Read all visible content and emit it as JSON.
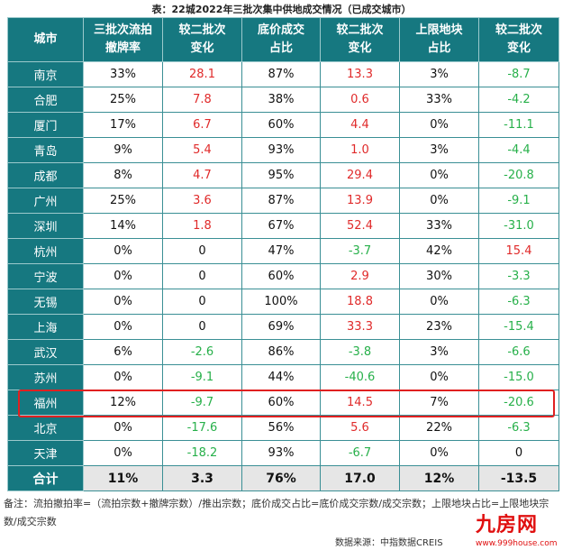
{
  "title": "表：22城2022年三批次集中供地成交情况（已成交城市）",
  "headers": [
    "城市",
    "三批次流拍\n撤牌率",
    "较二批次\n变化",
    "底价成交\n占比",
    "较二批次\n变化",
    "上限地块\n占比",
    "较二批次\n变化"
  ],
  "rows": [
    [
      "南京",
      "33%",
      "28.1",
      "87%",
      "13.3",
      "3%",
      "-8.7"
    ],
    [
      "合肥",
      "25%",
      "7.8",
      "38%",
      "0.6",
      "33%",
      "-4.2"
    ],
    [
      "厦门",
      "17%",
      "6.7",
      "60%",
      "4.4",
      "0%",
      "-11.1"
    ],
    [
      "青岛",
      "9%",
      "5.4",
      "93%",
      "1.0",
      "3%",
      "-4.4"
    ],
    [
      "成都",
      "8%",
      "4.7",
      "95%",
      "29.4",
      "0%",
      "-20.8"
    ],
    [
      "广州",
      "25%",
      "3.6",
      "87%",
      "13.9",
      "0%",
      "-9.1"
    ],
    [
      "深圳",
      "14%",
      "1.8",
      "67%",
      "52.4",
      "33%",
      "-31.0"
    ],
    [
      "杭州",
      "0%",
      "0",
      "47%",
      "-3.7",
      "42%",
      "15.4"
    ],
    [
      "宁波",
      "0%",
      "0",
      "60%",
      "2.9",
      "30%",
      "-3.3"
    ],
    [
      "无锡",
      "0%",
      "0",
      "100%",
      "18.8",
      "0%",
      "-6.3"
    ],
    [
      "上海",
      "0%",
      "0",
      "69%",
      "33.3",
      "23%",
      "-15.4"
    ],
    [
      "武汉",
      "6%",
      "-2.6",
      "86%",
      "-3.8",
      "3%",
      "-6.6"
    ],
    [
      "苏州",
      "0%",
      "-9.1",
      "44%",
      "-40.6",
      "0%",
      "-15.0"
    ],
    [
      "福州",
      "12%",
      "-9.7",
      "60%",
      "14.5",
      "7%",
      "-20.6"
    ],
    [
      "北京",
      "0%",
      "-17.6",
      "56%",
      "5.6",
      "22%",
      "-6.3"
    ],
    [
      "天津",
      "0%",
      "-18.2",
      "93%",
      "-6.7",
      "0%",
      "0"
    ]
  ],
  "total": [
    "合计",
    "11%",
    "3.3",
    "76%",
    "17.0",
    "12%",
    "-13.5"
  ],
  "highlighted_city": "福州",
  "note": "备注：流拍撤拍率=（流拍宗数+撤牌宗数）/推出宗数；底价成交占比=底价成交宗数/成交宗数；上限地块占比=上限地块宗数/成交宗数",
  "source": "数据来源：中指数据CREIS",
  "watermark": "中指数据 CREIS",
  "logo": "九房网",
  "logo_url": "www.999house.com",
  "colors": {
    "header": "#167880",
    "positive": "#e02a2a",
    "negative": "#27b04a",
    "highlight": "#e02020"
  }
}
